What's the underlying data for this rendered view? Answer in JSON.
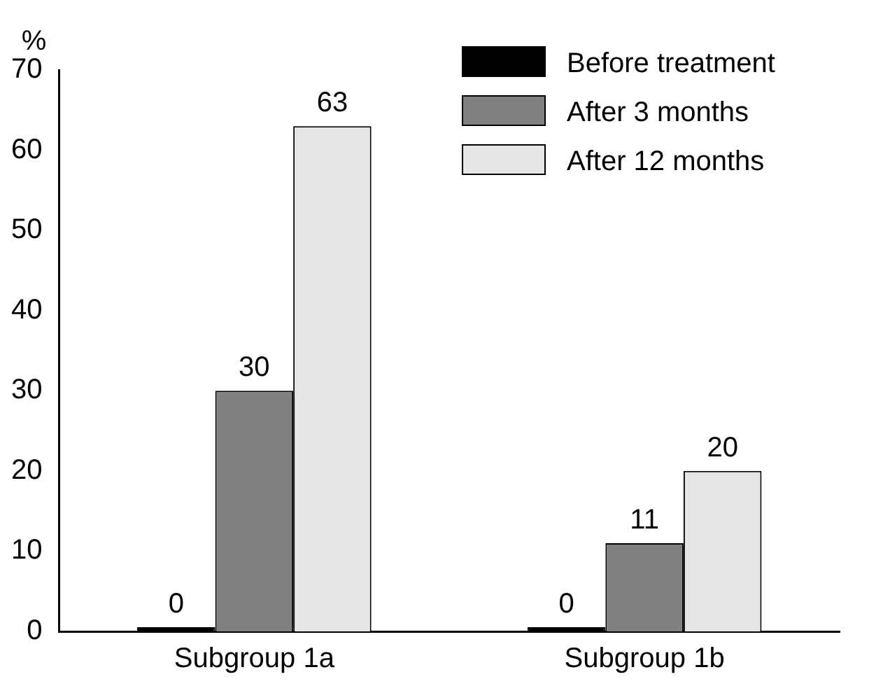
{
  "chart_data": {
    "type": "bar",
    "ylabel": "%",
    "categories": [
      "Subgroup 1a",
      "Subgroup 1b"
    ],
    "series": [
      {
        "name": "Before treatment",
        "color": "#000000",
        "values": [
          0,
          0
        ]
      },
      {
        "name": "After 3 months",
        "color": "#808080",
        "values": [
          30,
          11
        ]
      },
      {
        "name": "After 12 months",
        "color": "#e5e5e5",
        "values": [
          63,
          20
        ]
      }
    ],
    "ylim": [
      0,
      70
    ],
    "yticks": [
      0,
      10,
      20,
      30,
      40,
      50,
      60,
      70
    ],
    "grid": false,
    "legend": "top right",
    "data_labels": true
  }
}
